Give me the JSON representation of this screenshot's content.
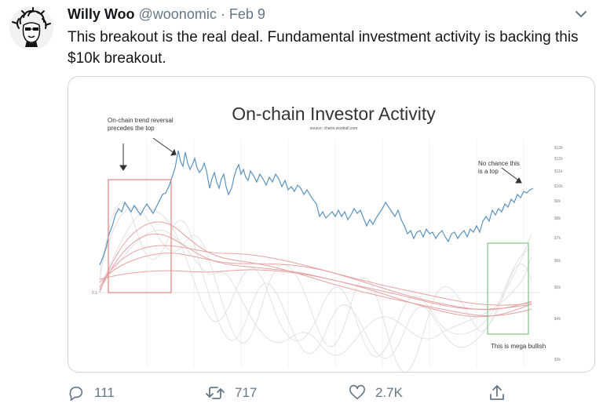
{
  "tweet": {
    "display_name": "Willy Woo",
    "handle": "@woonomic",
    "separator": "·",
    "date": "Feb 9",
    "text": "This breakout is the real deal. Fundamental investment activity is backing this $10k breakout."
  },
  "chart_image": {
    "title": "On-chain Investor Activity",
    "source": "source: charts.woobull.com",
    "annotation_top_left": [
      "On-chain trend reversal",
      "precedes the top"
    ],
    "annotation_top_right": [
      "No chance this",
      "is a top"
    ],
    "annotation_bottom_right": "This is mega bullish",
    "left_axis_label": "0.1",
    "right_axis_ticks": [
      "$13k",
      "$12k",
      "$11k",
      "$10k",
      "$9k",
      "$8k",
      "$7k",
      "$6k",
      "$5k",
      "$4k",
      "$3k"
    ],
    "colors": {
      "price_line": "#5b93bf",
      "red_box": "#e58a8a",
      "green_box": "#8fc58f",
      "oscillator_lines": "#e8a6a6",
      "faint_lines": "#e2e2e2"
    }
  },
  "actions": {
    "reply_count": "111",
    "retweet_count": "717",
    "like_count": "2.7K"
  },
  "icons": [
    "avatar",
    "chevron-down-icon",
    "reply-icon",
    "retweet-icon",
    "like-icon",
    "share-icon"
  ]
}
